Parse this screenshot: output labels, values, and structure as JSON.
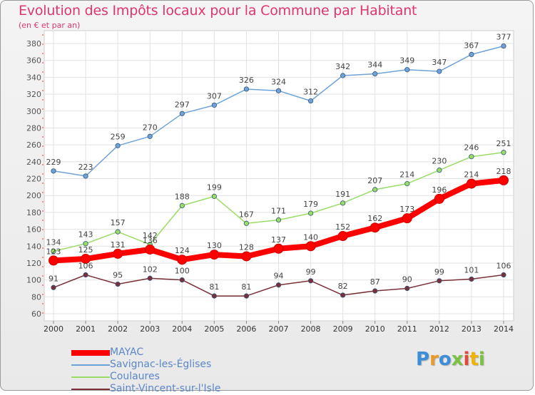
{
  "title": "Evolution des Impôts locaux pour la Commune par Habitant",
  "subtitle": "(en € et par an)",
  "logo": {
    "letters": [
      "P",
      "r",
      "o",
      "x",
      "i",
      "t",
      "i"
    ],
    "colors": [
      "#3a8fd8",
      "#e89a2a",
      "#3a8fd8",
      "#7cc242",
      "#e04a3a",
      "#f0b400",
      "#7cc242"
    ]
  },
  "chart_data": {
    "type": "line",
    "title": "Evolution des Impôts locaux pour la Commune par Habitant",
    "subtitle": "(en € et par an)",
    "x": [
      "2000",
      "2001",
      "2002",
      "2003",
      "2004",
      "2005",
      "2006",
      "2007",
      "2008",
      "2009",
      "2010",
      "2011",
      "2012",
      "2013",
      "2014"
    ],
    "ylim": [
      60,
      380
    ],
    "yticks": [
      60,
      80,
      100,
      120,
      140,
      160,
      180,
      200,
      220,
      240,
      260,
      280,
      300,
      320,
      340,
      360,
      380
    ],
    "grid": true,
    "legend_position": "bottom-left",
    "series": [
      {
        "name": "MAYAC",
        "color": "#ff0000",
        "values": [
          123,
          125,
          131,
          136,
          124,
          130,
          128,
          137,
          140,
          152,
          162,
          173,
          196,
          214,
          218
        ],
        "labels": [
          "123",
          "125",
          "131",
          "136",
          "124",
          "130",
          "128",
          "137",
          "140",
          "152",
          "162",
          "173",
          "196",
          "214",
          "218"
        ]
      },
      {
        "name": "Savignac-les-Églises",
        "color": "#6fa2d8",
        "values": [
          229,
          223,
          259,
          270,
          297,
          307,
          326,
          324,
          312,
          342,
          344,
          349,
          347,
          367,
          377
        ],
        "labels": [
          "229",
          "223",
          "259",
          "270",
          "297",
          "307",
          "326",
          "324",
          "312",
          "342",
          "344",
          "349",
          "347",
          "367",
          "377"
        ]
      },
      {
        "name": "Coulaures",
        "color": "#99dd66",
        "values": [
          134,
          143,
          157,
          142,
          188,
          199,
          167,
          171,
          179,
          191,
          207,
          214,
          230,
          246,
          251
        ],
        "labels": [
          "134",
          "143",
          "157",
          "142",
          "188",
          "199",
          "167",
          "171",
          "179",
          "191",
          "207",
          "214",
          "230",
          "246",
          "251"
        ]
      },
      {
        "name": "Saint-Vincent-sur-l'Isle",
        "color": "#7a3038",
        "values": [
          91,
          106,
          95,
          102,
          100,
          81,
          81,
          94,
          99,
          82,
          87,
          90,
          99,
          101,
          106
        ],
        "labels": [
          "91",
          "106",
          "95",
          "102",
          "100",
          "81",
          "81",
          "94",
          "99",
          "82",
          "87",
          "90",
          "99",
          "101",
          "106"
        ]
      }
    ]
  }
}
